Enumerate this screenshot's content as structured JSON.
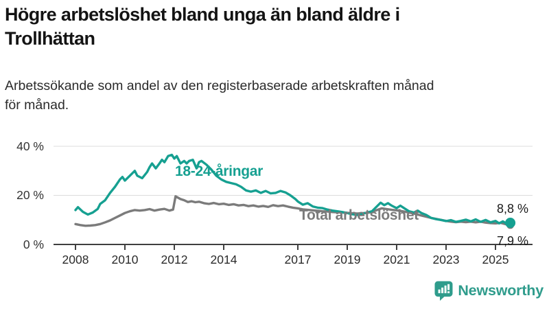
{
  "header": {
    "title": "Högre arbetslöshet bland unga än bland äldre i\nTrollhättan",
    "subtitle": "Arbetssökande som andel av den registerbaserade arbetskraften månad\nför månad."
  },
  "chart_data": {
    "type": "line",
    "title": "Högre arbetslöshet bland unga än bland äldre i Trollhättan",
    "xlabel": "",
    "ylabel": "",
    "x_unit": "year (monthly data)",
    "xlim": [
      2007.4,
      2026.2
    ],
    "ylim": [
      0,
      40
    ],
    "grid": "horizontal",
    "legend_position": "inline-labels",
    "y_ticks": [
      {
        "value": 0,
        "label": "0 %"
      },
      {
        "value": 20,
        "label": "20 %"
      },
      {
        "value": 40,
        "label": "40 %"
      }
    ],
    "x_ticks": [
      {
        "value": 2008,
        "label": "2008"
      },
      {
        "value": 2010,
        "label": "2010"
      },
      {
        "value": 2012,
        "label": "2012"
      },
      {
        "value": 2014,
        "label": "2014"
      },
      {
        "value": 2017,
        "label": "2017"
      },
      {
        "value": 2019,
        "label": "2019"
      },
      {
        "value": 2021,
        "label": "2021"
      },
      {
        "value": 2023,
        "label": "2023"
      },
      {
        "value": 2025,
        "label": "2025"
      }
    ],
    "series": [
      {
        "name": "18-24-åringar",
        "color": "#16A091",
        "end_value": 8.8,
        "end_label": "8,8 %",
        "points": [
          [
            2008.0,
            14.0
          ],
          [
            2008.1,
            15.2
          ],
          [
            2008.3,
            13.3
          ],
          [
            2008.5,
            12.2
          ],
          [
            2008.7,
            13.0
          ],
          [
            2008.9,
            14.5
          ],
          [
            2009.0,
            16.5
          ],
          [
            2009.2,
            18.0
          ],
          [
            2009.4,
            21.0
          ],
          [
            2009.6,
            23.5
          ],
          [
            2009.8,
            26.5
          ],
          [
            2009.9,
            27.5
          ],
          [
            2010.0,
            26.0
          ],
          [
            2010.2,
            28.0
          ],
          [
            2010.4,
            30.0
          ],
          [
            2010.5,
            28.0
          ],
          [
            2010.7,
            27.0
          ],
          [
            2010.9,
            29.5
          ],
          [
            2011.0,
            31.5
          ],
          [
            2011.1,
            33.0
          ],
          [
            2011.25,
            31.0
          ],
          [
            2011.4,
            33.0
          ],
          [
            2011.5,
            34.5
          ],
          [
            2011.6,
            33.5
          ],
          [
            2011.75,
            36.0
          ],
          [
            2011.9,
            36.5
          ],
          [
            2012.0,
            35.0
          ],
          [
            2012.1,
            36.0
          ],
          [
            2012.25,
            33.0
          ],
          [
            2012.4,
            34.0
          ],
          [
            2012.5,
            33.0
          ],
          [
            2012.6,
            34.0
          ],
          [
            2012.75,
            34.5
          ],
          [
            2012.9,
            31.0
          ],
          [
            2013.0,
            33.5
          ],
          [
            2013.1,
            34.0
          ],
          [
            2013.3,
            32.5
          ],
          [
            2013.5,
            30.5
          ],
          [
            2013.7,
            28.0
          ],
          [
            2013.9,
            26.5
          ],
          [
            2014.1,
            25.5
          ],
          [
            2014.3,
            25.0
          ],
          [
            2014.5,
            24.5
          ],
          [
            2014.7,
            23.5
          ],
          [
            2014.9,
            22.0
          ],
          [
            2015.1,
            21.5
          ],
          [
            2015.3,
            22.0
          ],
          [
            2015.5,
            21.0
          ],
          [
            2015.7,
            21.8
          ],
          [
            2015.9,
            20.8
          ],
          [
            2016.1,
            21.0
          ],
          [
            2016.3,
            21.8
          ],
          [
            2016.5,
            21.2
          ],
          [
            2016.7,
            20.0
          ],
          [
            2016.9,
            18.5
          ],
          [
            2017.0,
            17.5
          ],
          [
            2017.2,
            16.2
          ],
          [
            2017.4,
            16.8
          ],
          [
            2017.6,
            15.5
          ],
          [
            2017.8,
            15.0
          ],
          [
            2018.0,
            14.8
          ],
          [
            2018.2,
            14.2
          ],
          [
            2018.4,
            13.8
          ],
          [
            2018.6,
            13.5
          ],
          [
            2018.8,
            13.2
          ],
          [
            2019.0,
            12.8
          ],
          [
            2019.2,
            12.3
          ],
          [
            2019.4,
            12.0
          ],
          [
            2019.6,
            12.5
          ],
          [
            2019.8,
            13.0
          ],
          [
            2020.0,
            13.5
          ],
          [
            2020.2,
            15.5
          ],
          [
            2020.35,
            17.0
          ],
          [
            2020.5,
            16.0
          ],
          [
            2020.65,
            16.8
          ],
          [
            2020.8,
            15.8
          ],
          [
            2021.0,
            14.8
          ],
          [
            2021.15,
            15.8
          ],
          [
            2021.3,
            14.8
          ],
          [
            2021.5,
            13.5
          ],
          [
            2021.7,
            13.0
          ],
          [
            2021.85,
            13.8
          ],
          [
            2022.0,
            12.8
          ],
          [
            2022.2,
            12.0
          ],
          [
            2022.4,
            10.8
          ],
          [
            2022.6,
            10.3
          ],
          [
            2022.8,
            10.0
          ],
          [
            2023.0,
            9.5
          ],
          [
            2023.2,
            9.9
          ],
          [
            2023.4,
            9.2
          ],
          [
            2023.6,
            9.6
          ],
          [
            2023.8,
            10.1
          ],
          [
            2024.0,
            9.4
          ],
          [
            2024.2,
            10.2
          ],
          [
            2024.4,
            9.2
          ],
          [
            2024.6,
            10.0
          ],
          [
            2024.8,
            9.0
          ],
          [
            2025.0,
            9.6
          ],
          [
            2025.15,
            8.6
          ],
          [
            2025.3,
            9.4
          ],
          [
            2025.45,
            8.5
          ],
          [
            2025.6,
            8.8
          ]
        ]
      },
      {
        "name": "Total arbetslöshet",
        "color": "#7B7B7B",
        "end_value": 7.9,
        "end_label": "7,9 %",
        "points": [
          [
            2008.0,
            8.3
          ],
          [
            2008.2,
            7.9
          ],
          [
            2008.4,
            7.6
          ],
          [
            2008.6,
            7.7
          ],
          [
            2008.8,
            7.9
          ],
          [
            2009.0,
            8.3
          ],
          [
            2009.2,
            9.0
          ],
          [
            2009.4,
            9.8
          ],
          [
            2009.6,
            10.8
          ],
          [
            2009.8,
            11.8
          ],
          [
            2010.0,
            12.8
          ],
          [
            2010.2,
            13.5
          ],
          [
            2010.4,
            14.0
          ],
          [
            2010.6,
            13.8
          ],
          [
            2010.8,
            14.0
          ],
          [
            2011.0,
            14.4
          ],
          [
            2011.2,
            13.8
          ],
          [
            2011.4,
            14.2
          ],
          [
            2011.6,
            14.5
          ],
          [
            2011.8,
            13.8
          ],
          [
            2011.95,
            14.2
          ],
          [
            2012.05,
            19.6
          ],
          [
            2012.25,
            18.5
          ],
          [
            2012.4,
            18.0
          ],
          [
            2012.55,
            17.3
          ],
          [
            2012.7,
            17.6
          ],
          [
            2012.85,
            17.2
          ],
          [
            2013.0,
            17.4
          ],
          [
            2013.2,
            16.8
          ],
          [
            2013.4,
            16.5
          ],
          [
            2013.6,
            16.9
          ],
          [
            2013.8,
            16.4
          ],
          [
            2014.0,
            16.6
          ],
          [
            2014.2,
            16.1
          ],
          [
            2014.4,
            16.4
          ],
          [
            2014.6,
            15.9
          ],
          [
            2014.8,
            16.1
          ],
          [
            2015.0,
            15.6
          ],
          [
            2015.2,
            15.9
          ],
          [
            2015.4,
            15.4
          ],
          [
            2015.6,
            15.7
          ],
          [
            2015.8,
            15.3
          ],
          [
            2016.0,
            16.0
          ],
          [
            2016.2,
            15.6
          ],
          [
            2016.4,
            15.9
          ],
          [
            2016.6,
            15.4
          ],
          [
            2016.8,
            15.0
          ],
          [
            2017.0,
            14.7
          ],
          [
            2017.2,
            14.3
          ],
          [
            2017.4,
            14.1
          ],
          [
            2017.6,
            13.9
          ],
          [
            2017.8,
            13.7
          ],
          [
            2018.0,
            13.5
          ],
          [
            2018.2,
            13.4
          ],
          [
            2018.4,
            13.2
          ],
          [
            2018.6,
            13.1
          ],
          [
            2018.8,
            13.0
          ],
          [
            2019.0,
            12.9
          ],
          [
            2019.2,
            12.7
          ],
          [
            2019.4,
            12.6
          ],
          [
            2019.6,
            12.7
          ],
          [
            2019.8,
            12.9
          ],
          [
            2020.0,
            13.2
          ],
          [
            2020.2,
            14.0
          ],
          [
            2020.4,
            14.7
          ],
          [
            2020.6,
            14.4
          ],
          [
            2020.8,
            14.1
          ],
          [
            2021.0,
            13.9
          ],
          [
            2021.2,
            13.6
          ],
          [
            2021.4,
            13.2
          ],
          [
            2021.6,
            12.8
          ],
          [
            2021.8,
            12.3
          ],
          [
            2022.0,
            11.8
          ],
          [
            2022.2,
            11.3
          ],
          [
            2022.4,
            10.8
          ],
          [
            2022.6,
            10.4
          ],
          [
            2022.8,
            10.0
          ],
          [
            2023.0,
            9.6
          ],
          [
            2023.2,
            9.3
          ],
          [
            2023.4,
            9.1
          ],
          [
            2023.6,
            9.3
          ],
          [
            2023.8,
            9.1
          ],
          [
            2024.0,
            9.3
          ],
          [
            2024.2,
            9.0
          ],
          [
            2024.4,
            9.3
          ],
          [
            2024.6,
            8.9
          ],
          [
            2024.8,
            8.7
          ],
          [
            2025.0,
            8.6
          ],
          [
            2025.2,
            8.8
          ],
          [
            2025.4,
            8.3
          ],
          [
            2025.6,
            7.9
          ]
        ]
      }
    ]
  },
  "footer": {
    "brand": "Newsworthy",
    "brand_color": "#2F9C8C"
  }
}
